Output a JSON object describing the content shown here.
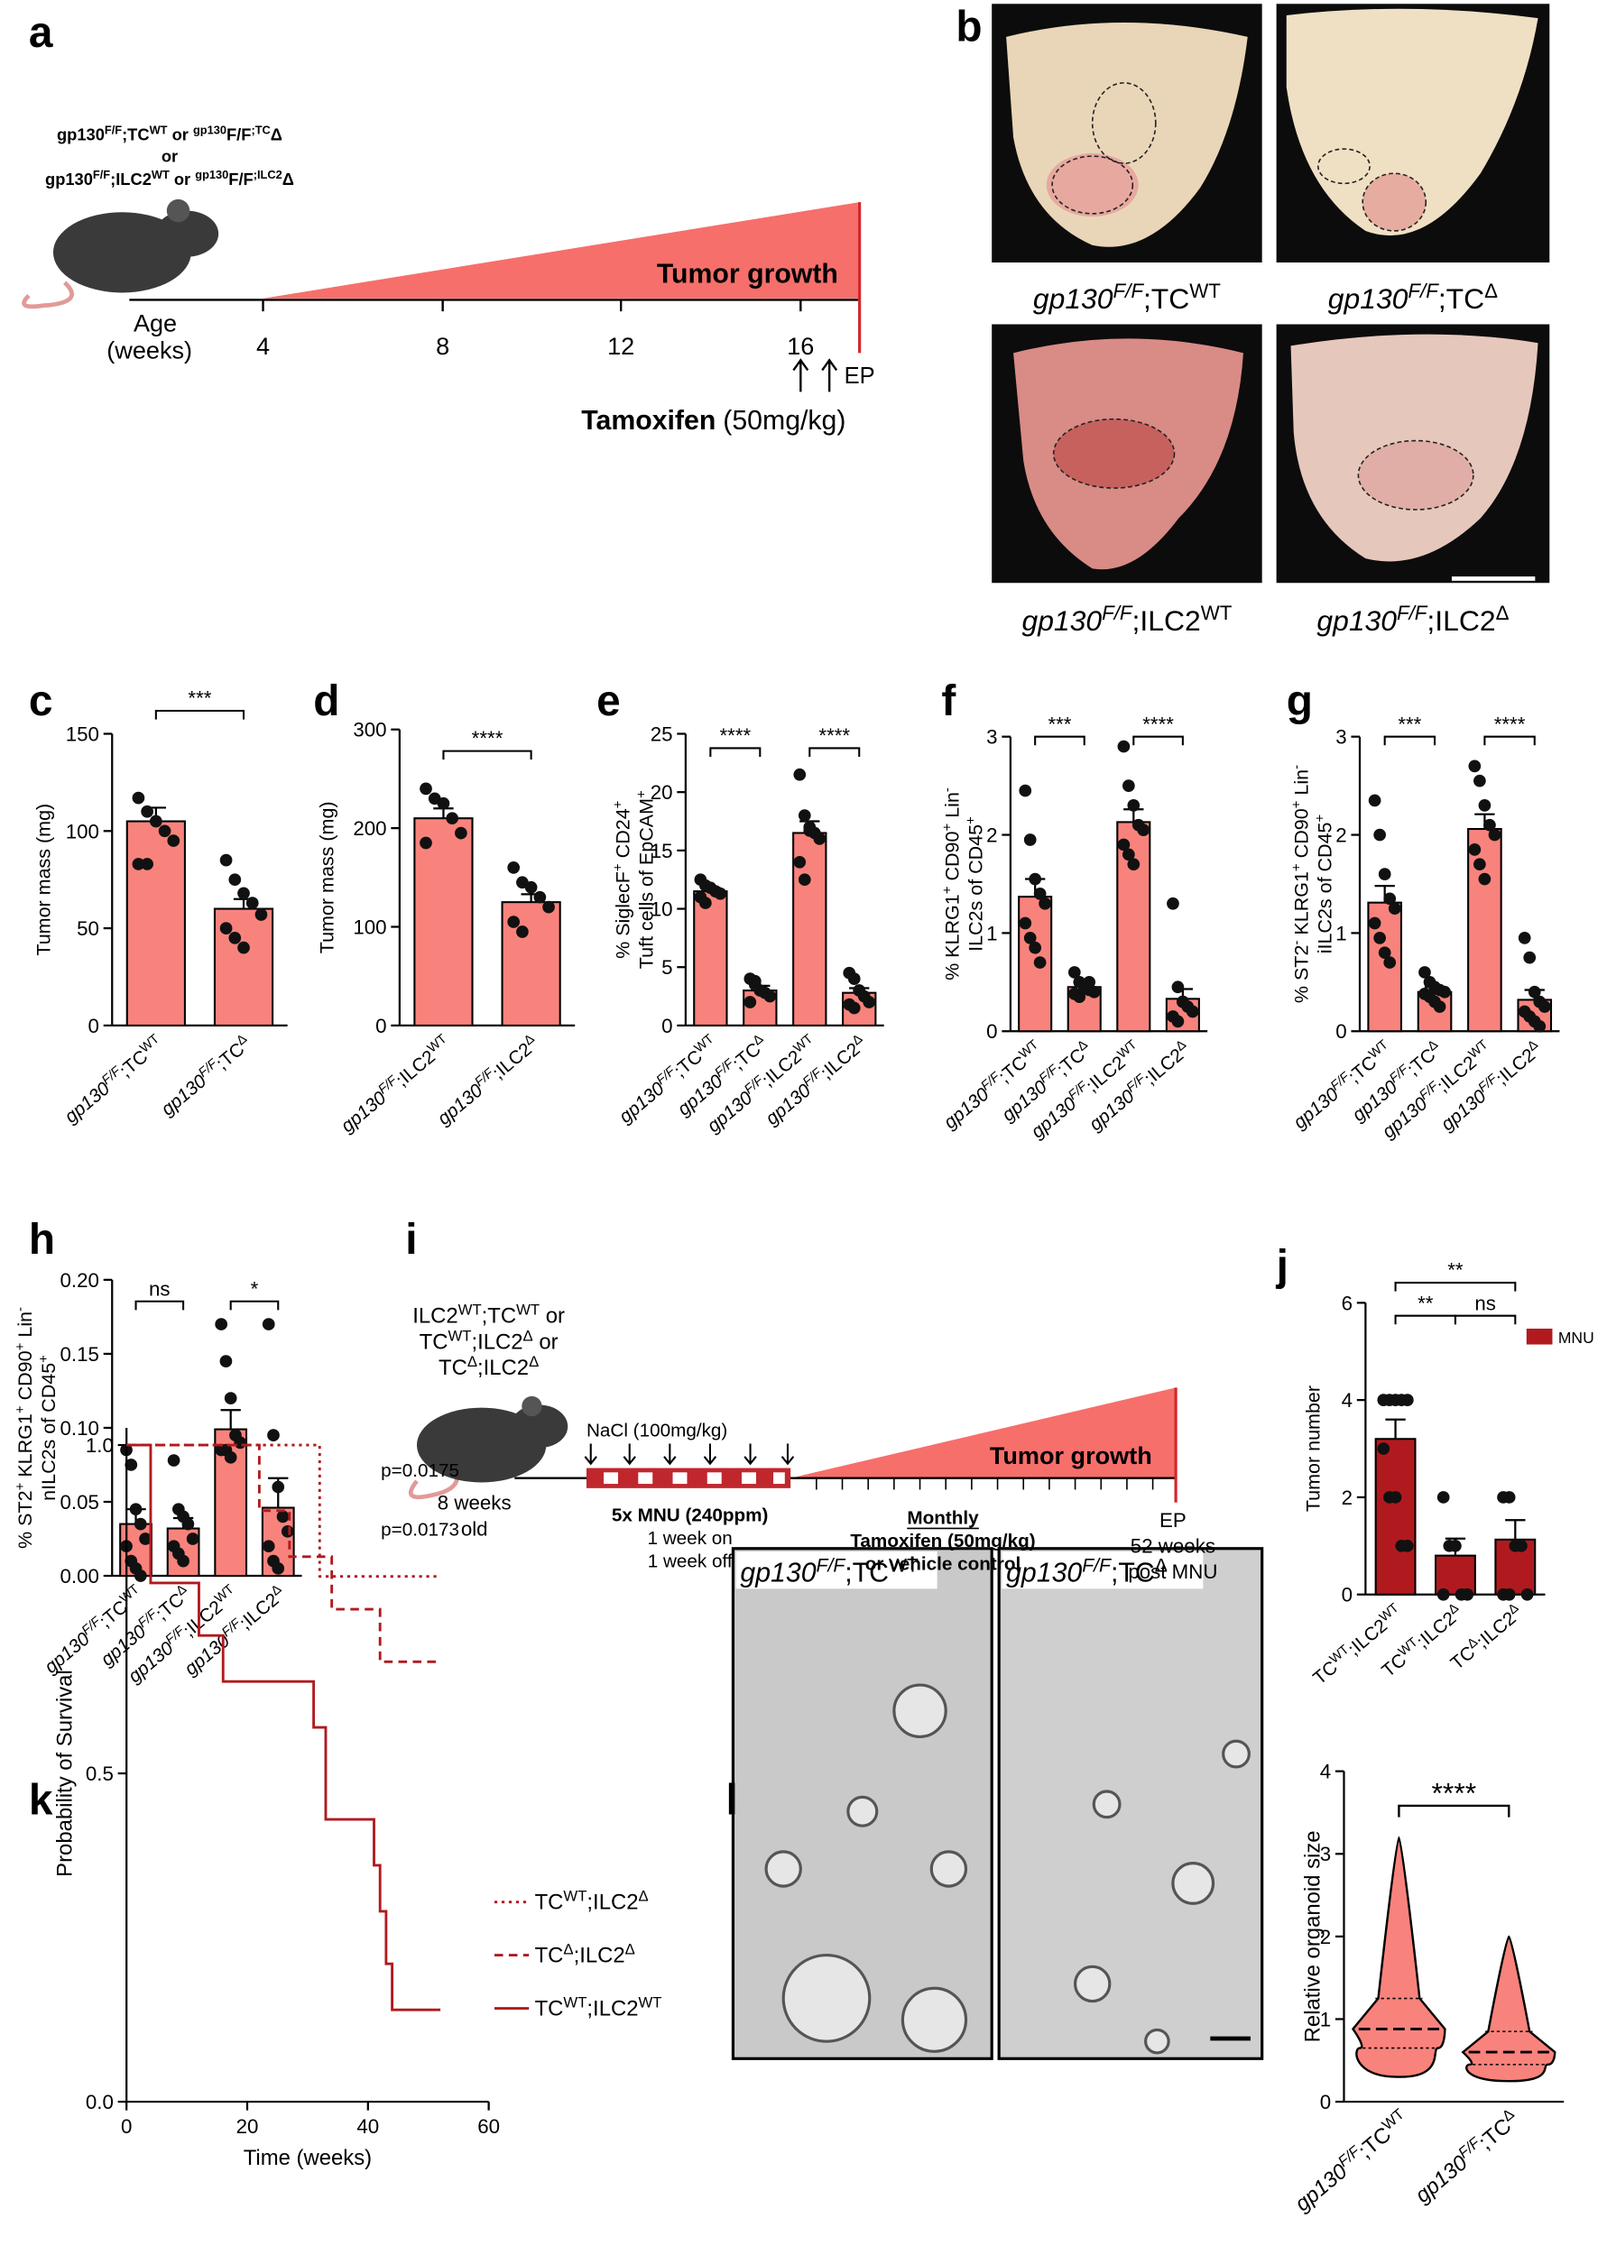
{
  "panel_labels": [
    "a",
    "b",
    "c",
    "d",
    "e",
    "f",
    "g",
    "h",
    "i",
    "j",
    "k",
    "l"
  ],
  "diagram_a": {
    "genotypes": [
      [
        "gp130",
        "F/F",
        ";TC",
        "WT",
        " or ",
        "gp130",
        "F/F",
        ";TC",
        "Δ"
      ],
      "or",
      [
        "gp130",
        "F/F",
        ";ILC2",
        "WT",
        " or ",
        "gp130",
        "F/F",
        ";ILC2",
        "Δ"
      ]
    ],
    "age_label": "Age",
    "weeks_label": "(weeks)",
    "ticks": [
      4,
      8,
      12,
      16
    ],
    "growth_label": "Tumor growth",
    "endpoint": "EP",
    "tamoxifen_label": "Tamoxifen",
    "tamoxifen_dose": "(50mg/kg)"
  },
  "photos_b": {
    "labels": [
      [
        "gp130",
        "F/F",
        ";TC",
        "WT"
      ],
      [
        "gp130",
        "F/F",
        ";TC",
        "Δ"
      ],
      [
        "gp130",
        "F/F",
        ";ILC2",
        "WT"
      ],
      [
        "gp130",
        "F/F",
        ";ILC2",
        "Δ"
      ]
    ]
  },
  "diagram_i": {
    "genotypes": [
      [
        "ILC2",
        "WT",
        ";TC",
        "WT",
        " or"
      ],
      [
        "TC",
        "WT",
        ";ILC2",
        "Δ",
        " or"
      ],
      [
        "TC",
        "Δ",
        ";ILC2",
        "Δ"
      ]
    ],
    "age_lines": [
      "8 weeks",
      "old"
    ],
    "nacl_label": "NaCl (100mg/kg)",
    "mnu_lines": [
      "5x MNU (240ppm)",
      "1 week on",
      "1 week off"
    ],
    "monthly": "Monthly",
    "treatment_lines": [
      "Tamoxifen (50mg/kg)",
      "or vehicle control"
    ],
    "growth_label": "Tumor growth",
    "endpoint_lines": [
      "EP",
      "52 weeks",
      "post MNU"
    ]
  },
  "photos_l": {
    "labels": [
      [
        "gp130",
        "F/F",
        ";TC",
        "WT"
      ],
      [
        "gp130",
        "F/F",
        ";TC",
        "Δ"
      ]
    ]
  },
  "chart_data": [
    {
      "type": "bar",
      "ylabel": "Tumor mass (mg)",
      "ylim": [
        0,
        150
      ],
      "yticks": [
        0,
        50,
        100,
        150
      ],
      "categories": [
        [
          "gp130",
          "F/F",
          ";TC",
          "WT"
        ],
        [
          "gp130",
          "F/F",
          ";TC",
          "Δ"
        ]
      ],
      "series": [
        {
          "color": "#f8837c",
          "values": [
            105,
            60
          ],
          "errors": [
            7,
            5
          ],
          "points": [
            [
              117,
              110,
              105,
              100,
              95,
              83,
              83
            ],
            [
              85,
              75,
              68,
              63,
              57,
              50,
              45,
              40
            ]
          ]
        }
      ],
      "significance": [
        "***"
      ]
    },
    {
      "type": "bar",
      "ylabel": "Tumor mass (mg)",
      "ylim": [
        0,
        300
      ],
      "yticks": [
        0,
        100,
        200,
        300
      ],
      "categories": [
        [
          "gp130",
          "F/F",
          ";ILC2",
          "WT"
        ],
        [
          "gp130",
          "F/F",
          ";ILC2",
          "Δ"
        ]
      ],
      "series": [
        {
          "color": "#f8837c",
          "values": [
            210,
            125
          ],
          "errors": [
            10,
            8
          ],
          "points": [
            [
              240,
              230,
              225,
              210,
              195,
              185
            ],
            [
              160,
              145,
              140,
              130,
              120,
              105,
              95
            ]
          ]
        }
      ],
      "significance": [
        "****"
      ]
    },
    {
      "type": "bar",
      "ylabel": [
        [
          "% SiglecF",
          "+",
          " CD24",
          "+"
        ],
        [
          "Tuft cells of EpCAM",
          "+"
        ]
      ],
      "ylim": [
        0,
        25
      ],
      "yticks": [
        0,
        5,
        10,
        15,
        20,
        25
      ],
      "categories": [
        [
          "gp130",
          "F/F",
          ";TC",
          "WT"
        ],
        [
          "gp130",
          "F/F",
          ";TC",
          "Δ"
        ],
        [
          "gp130",
          "F/F",
          ";ILC2",
          "WT"
        ],
        [
          "gp130",
          "F/F",
          ";ILC2",
          "Δ"
        ]
      ],
      "series": [
        {
          "color": "#f8837c",
          "values": [
            11.5,
            3,
            16.5,
            2.8
          ],
          "errors": [
            0.3,
            0.4,
            1,
            0.4
          ],
          "points": [
            [
              12.5,
              12,
              11.8,
              11.5,
              11.3,
              11,
              10.5
            ],
            [
              4,
              3.8,
              3,
              2.8,
              2.5,
              2,
              3.5
            ],
            [
              21.5,
              18,
              17,
              16.5,
              16,
              14,
              12.5,
              16.7
            ],
            [
              4.5,
              4,
              3,
              2.5,
              2,
              1.8,
              1.5,
              3
            ]
          ]
        }
      ],
      "significance": [
        "****",
        "****"
      ]
    },
    {
      "type": "bar",
      "ylabel": [
        [
          "% KLRG1",
          "+",
          " CD90",
          "+",
          " Lin",
          "-"
        ],
        [
          "ILC2s of  CD45",
          "+"
        ]
      ],
      "ylim": [
        0,
        3
      ],
      "yticks": [
        0,
        1,
        2,
        3
      ],
      "categories": [
        [
          "gp130",
          "F/F",
          ";TC",
          "WT"
        ],
        [
          "gp130",
          "F/F",
          ";TC",
          "Δ"
        ],
        [
          "gp130",
          "F/F",
          ";ILC2",
          "WT"
        ],
        [
          "gp130",
          "F/F",
          ";ILC2",
          "Δ"
        ]
      ],
      "series": [
        {
          "color": "#f8837c",
          "values": [
            1.37,
            0.45,
            2.13,
            0.33
          ],
          "errors": [
            0.18,
            0.05,
            0.13,
            0.1
          ],
          "points": [
            [
              2.45,
              1.95,
              1.55,
              1.4,
              1.3,
              1.1,
              0.95,
              0.85,
              0.7
            ],
            [
              0.6,
              0.5,
              0.45,
              0.42,
              0.4,
              0.38,
              0.35,
              0.45,
              0.5
            ],
            [
              2.9,
              2.5,
              2.3,
              2.1,
              2.05,
              1.9,
              1.8,
              1.7
            ],
            [
              1.3,
              0.45,
              0.3,
              0.25,
              0.2,
              0.15,
              0.1,
              0.3
            ]
          ]
        }
      ],
      "significance": [
        "***",
        "****"
      ]
    },
    {
      "type": "bar",
      "ylabel": [
        [
          "% ST2",
          "-",
          " KLRG1",
          "+",
          " CD90",
          "+",
          " Lin",
          "-"
        ],
        [
          "iILC2s of CD45",
          "+"
        ]
      ],
      "ylim": [
        0,
        3
      ],
      "yticks": [
        0,
        1,
        2,
        3
      ],
      "categories": [
        [
          "gp130",
          "F/F",
          ";TC",
          "WT"
        ],
        [
          "gp130",
          "F/F",
          ";TC",
          "Δ"
        ],
        [
          "gp130",
          "F/F",
          ";ILC2",
          "WT"
        ],
        [
          "gp130",
          "F/F",
          ";ILC2",
          "Δ"
        ]
      ],
      "series": [
        {
          "color": "#f8837c",
          "values": [
            1.31,
            0.4,
            2.06,
            0.32
          ],
          "errors": [
            0.17,
            0.05,
            0.15,
            0.1
          ],
          "points": [
            [
              2.35,
              2.0,
              1.6,
              1.35,
              1.25,
              1.1,
              0.95,
              0.8,
              0.7
            ],
            [
              0.6,
              0.5,
              0.45,
              0.42,
              0.4,
              0.38,
              0.35,
              0.3,
              0.25
            ],
            [
              2.7,
              2.55,
              2.3,
              2.1,
              2.0,
              1.85,
              1.7,
              1.55
            ],
            [
              0.95,
              0.75,
              0.4,
              0.3,
              0.25,
              0.2,
              0.15,
              0.1,
              0.05
            ]
          ]
        }
      ],
      "significance": [
        "***",
        "****"
      ]
    },
    {
      "type": "bar",
      "ylabel": [
        [
          "% ST2",
          "+",
          " KLRG1",
          "+",
          " CD90",
          "+",
          " Lin",
          "-"
        ],
        [
          "nILC2s of  CD45",
          "+"
        ]
      ],
      "ylim": [
        0,
        0.2
      ],
      "yticks": [
        {
          "value": 0,
          "label": "0.00"
        },
        {
          "value": 0.05,
          "label": "0.05"
        },
        {
          "value": 0.1,
          "label": "0.10"
        },
        {
          "value": 0.15,
          "label": "0.15"
        },
        {
          "value": 0.2,
          "label": "0.20"
        }
      ],
      "categories": [
        [
          "gp130",
          "F/F",
          ";TC",
          "WT"
        ],
        [
          "gp130",
          "F/F",
          ";TC",
          "Δ"
        ],
        [
          "gp130",
          "F/F",
          ";ILC2",
          "WT"
        ],
        [
          "gp130",
          "F/F",
          ";ILC2",
          "Δ"
        ]
      ],
      "series": [
        {
          "color": "#f8837c",
          "values": [
            0.035,
            0.032,
            0.099,
            0.046
          ],
          "errors": [
            0.01,
            0.007,
            0.013,
            0.02
          ],
          "points": [
            [
              0.085,
              0.075,
              0.045,
              0.035,
              0.025,
              0.02,
              0.01,
              0.005,
              0
            ],
            [
              0.078,
              0.045,
              0.04,
              0.035,
              0.025,
              0.02,
              0.015,
              0.01
            ],
            [
              0.17,
              0.145,
              0.12,
              0.095,
              0.09,
              0.085,
              0.085,
              0.08
            ],
            [
              0.17,
              0.095,
              0.06,
              0.04,
              0.03,
              0.02,
              0.01,
              0.005
            ]
          ]
        }
      ],
      "significance": [
        "ns",
        "*"
      ]
    },
    {
      "type": "bar",
      "ylabel": "Tumor number",
      "ylim": [
        0,
        6
      ],
      "yticks": [
        0,
        2,
        4,
        6
      ],
      "categories": [
        [
          "TC",
          "WT",
          ";ILC2",
          "WT"
        ],
        [
          "TC",
          "WT",
          ";ILC2",
          "Δ"
        ],
        [
          "TC",
          "Δ",
          ";ILC2",
          "Δ"
        ]
      ],
      "series": [
        {
          "name": "MNU",
          "color": "#b01a1f",
          "values": [
            3.2,
            0.8,
            1.13
          ],
          "errors": [
            0.4,
            0.35,
            0.4
          ],
          "points": [
            [
              4,
              4,
              4,
              4,
              4,
              3,
              2,
              2,
              1,
              1
            ],
            [
              2,
              1,
              1,
              0,
              0,
              0
            ],
            [
              2,
              2,
              1,
              1,
              0,
              0,
              0
            ]
          ]
        }
      ],
      "significance": [
        "**",
        "**",
        "ns"
      ]
    },
    {
      "type": "step",
      "xlabel": "Time (weeks)",
      "ylabel": "Probability of Survival",
      "xlim": [
        0,
        60
      ],
      "xticks": [
        0,
        20,
        40,
        60
      ],
      "ylim": [
        0,
        1
      ],
      "yticks": [
        {
          "value": 0,
          "label": "0.0"
        },
        {
          "value": 0.5,
          "label": "0.5"
        },
        {
          "value": 1,
          "label": "1.0"
        }
      ],
      "series": [
        {
          "name": [
            "TC",
            "WT",
            ";ILC2",
            "Δ"
          ],
          "color": "#b01a1f",
          "x": [
            0,
            32,
            52
          ],
          "y": [
            1,
            0.8,
            0.8
          ]
        },
        {
          "name": [
            "TC",
            "Δ",
            ";ILC2",
            "Δ"
          ],
          "color": "#b01a1f",
          "x": [
            0,
            22,
            27,
            34,
            42,
            52
          ],
          "y": [
            1,
            0.9,
            0.83,
            0.75,
            0.67,
            0.67
          ]
        },
        {
          "name": [
            "TC",
            "WT",
            ";ILC2",
            "WT"
          ],
          "color": "#b01a1f",
          "x": [
            0,
            4,
            12,
            16,
            31,
            33,
            41,
            42,
            43,
            44,
            52
          ],
          "y": [
            1,
            0.79,
            0.71,
            0.64,
            0.57,
            0.43,
            0.36,
            0.29,
            0.21,
            0.14,
            0.14
          ]
        }
      ],
      "annotations": [
        "p=0.0175",
        "p=0.0173"
      ]
    },
    {
      "type": "violin",
      "ylabel": "Relative organoid size",
      "ylim": [
        0,
        4
      ],
      "yticks": [
        0,
        1,
        2,
        3,
        4
      ],
      "categories": [
        [
          "gp130",
          "F/F",
          ";TC",
          "WT"
        ],
        [
          "gp130",
          "F/F",
          ";TC",
          "Δ"
        ]
      ],
      "color": "#f8837c",
      "min": [
        0.3,
        0.25
      ],
      "q1": [
        0.65,
        0.45
      ],
      "median": [
        0.88,
        0.6
      ],
      "q3": [
        1.25,
        0.85
      ],
      "max": [
        3.2,
        2.0
      ],
      "significance": [
        "****"
      ]
    }
  ]
}
